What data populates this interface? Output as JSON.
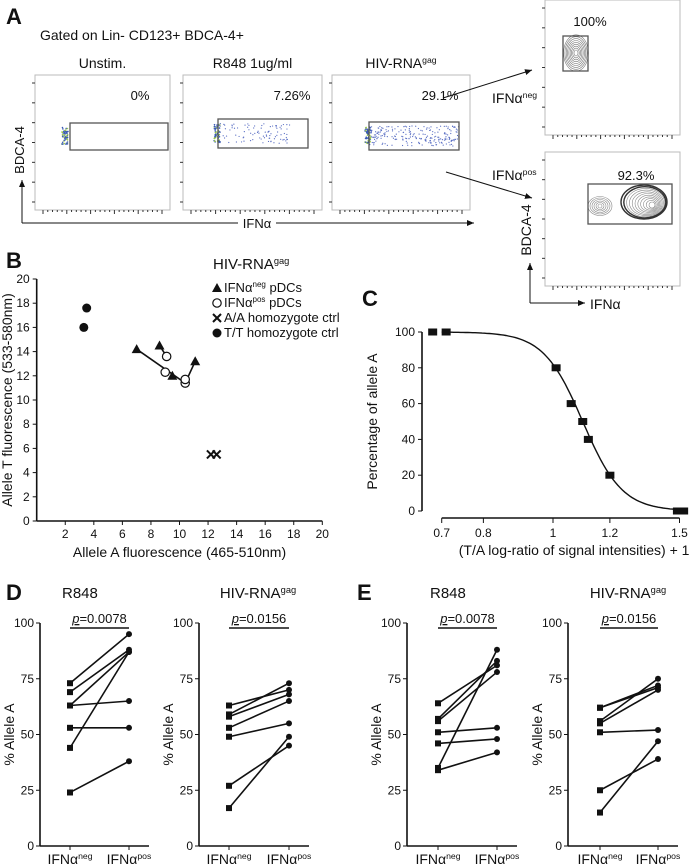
{
  "panel_a": {
    "letter": "A",
    "title": "Gated on Lin- CD123+ BDCA-4+",
    "plots": [
      {
        "title": "Unstim.",
        "title_sup": "",
        "percent": "0%"
      },
      {
        "title": "R848 1ug/ml",
        "title_sup": "",
        "percent": "7.26%"
      },
      {
        "title": "HIV-RNA",
        "title_sup": "gag",
        "percent": "29.1%"
      }
    ],
    "y_label": "BDCA-4",
    "x_label": "IFNα",
    "sorted": [
      {
        "label": "IFNα",
        "label_sup": "neg",
        "percent": "100%"
      },
      {
        "label": "IFNα",
        "label_sup": "pos",
        "percent": "92.3%"
      }
    ],
    "sorted_y_label": "BDCA-4",
    "sorted_x_label": "IFNα"
  },
  "chart_data": [
    {
      "panel": "B",
      "type": "scatter",
      "title": "HIV-RNA",
      "title_sup": "gag",
      "xlabel": "Allele A fluorescence (465-510nm)",
      "ylabel": "Allele T fluorescence (533-580nm)",
      "xlim": [
        0,
        20
      ],
      "ylim": [
        0,
        20
      ],
      "xticks": [
        2,
        4,
        6,
        8,
        10,
        12,
        14,
        16,
        18,
        20
      ],
      "yticks": [
        0,
        2,
        4,
        6,
        8,
        10,
        12,
        14,
        16,
        18,
        20
      ],
      "legend_position": "top-right",
      "series": [
        {
          "name": "IFNα",
          "name_sup": "neg",
          "name_suffix": " pDCs",
          "marker": "filled-triangle",
          "points": [
            [
              7.0,
              14.2
            ],
            [
              8.6,
              14.5
            ],
            [
              9.5,
              12.0
            ],
            [
              11.1,
              13.2
            ]
          ]
        },
        {
          "name": "IFNα",
          "name_sup": "pos",
          "name_suffix": " pDCs",
          "marker": "open-circle",
          "points": [
            [
              9.0,
              12.3
            ],
            [
              9.1,
              13.6
            ],
            [
              10.4,
              11.4
            ],
            [
              10.4,
              11.7
            ]
          ]
        },
        {
          "name": "A/A homozygote ctrl",
          "name_sup": "",
          "name_suffix": "",
          "marker": "cross",
          "points": [
            [
              12.2,
              5.5
            ],
            [
              12.6,
              5.5
            ]
          ]
        },
        {
          "name": "T/T homozygote ctrl",
          "name_sup": "",
          "name_suffix": "",
          "marker": "filled-circle",
          "points": [
            [
              3.3,
              16.0
            ],
            [
              3.5,
              17.6
            ]
          ]
        }
      ],
      "connectors": [
        [
          [
            7.0,
            14.2
          ],
          [
            10.4,
            11.4
          ]
        ],
        [
          [
            8.6,
            14.5
          ],
          [
            9.1,
            13.6
          ]
        ],
        [
          [
            11.1,
            13.2
          ],
          [
            10.4,
            11.4
          ]
        ]
      ]
    },
    {
      "panel": "C",
      "type": "scatter",
      "xlabel": "(T/A log-ratio of signal intensities) + 1",
      "ylabel": "Percentage of allele A",
      "x_scale": "log",
      "xlim": [
        0.7,
        1.5
      ],
      "ylim": [
        0,
        100
      ],
      "xticks": [
        0.7,
        0.8,
        1,
        1.2,
        1.5
      ],
      "xtick_labels": [
        "0.7",
        "0.8",
        "1",
        "1.2",
        "1.5"
      ],
      "yticks": [
        0,
        20,
        40,
        60,
        80,
        100
      ],
      "fit": "sigmoid",
      "x": [
        0.68,
        0.71,
        1.01,
        1.06,
        1.1,
        1.12,
        1.2,
        1.49,
        1.52
      ],
      "y": [
        100,
        100,
        80,
        60,
        50,
        40,
        20,
        0,
        0
      ]
    },
    {
      "panel": "D",
      "subpanel": "R848",
      "type": "paired-line",
      "title": "R848",
      "title_sup": "",
      "ylabel": "% Allele A",
      "ylim": [
        0,
        100
      ],
      "yticks": [
        0,
        25,
        50,
        75,
        100
      ],
      "categories": [
        {
          "label": "IFNα",
          "sup": "neg"
        },
        {
          "label": "IFNα",
          "sup": "pos"
        }
      ],
      "pvalue_prefix": "p",
      "pvalue": "=0.0078",
      "pairs": [
        [
          73,
          95
        ],
        [
          69,
          88
        ],
        [
          63,
          87
        ],
        [
          63,
          65
        ],
        [
          53,
          53
        ],
        [
          44,
          87
        ],
        [
          24,
          38
        ]
      ]
    },
    {
      "panel": "D",
      "subpanel": "HIV-RNA gag",
      "type": "paired-line",
      "title": "HIV-RNA",
      "title_sup": "gag",
      "ylabel": "% Allele A",
      "ylim": [
        0,
        100
      ],
      "yticks": [
        0,
        25,
        50,
        75,
        100
      ],
      "categories": [
        {
          "label": "IFNα",
          "sup": "neg"
        },
        {
          "label": "IFNα",
          "sup": "pos"
        }
      ],
      "pvalue_prefix": "p",
      "pvalue": "=0.0156",
      "pairs": [
        [
          63,
          70
        ],
        [
          59,
          73
        ],
        [
          58,
          68
        ],
        [
          53,
          65
        ],
        [
          49,
          55
        ],
        [
          27,
          45
        ],
        [
          17,
          49
        ]
      ]
    },
    {
      "panel": "E",
      "subpanel": "R848",
      "type": "paired-line",
      "title": "R848",
      "title_sup": "",
      "ylabel": "% Allele A",
      "ylim": [
        0,
        100
      ],
      "yticks": [
        0,
        25,
        50,
        75,
        100
      ],
      "categories": [
        {
          "label": "IFNα",
          "sup": "neg"
        },
        {
          "label": "IFNα",
          "sup": "pos"
        }
      ],
      "pvalue_prefix": "p",
      "pvalue": "=0.0078",
      "pairs": [
        [
          64,
          81
        ],
        [
          57,
          83
        ],
        [
          56,
          78
        ],
        [
          51,
          53
        ],
        [
          46,
          48
        ],
        [
          35,
          88
        ],
        [
          34,
          42
        ]
      ]
    },
    {
      "panel": "E",
      "subpanel": "HIV-RNA gag",
      "type": "paired-line",
      "title": "HIV-RNA",
      "title_sup": "gag",
      "ylabel": "% Allele A",
      "ylim": [
        0,
        100
      ],
      "yticks": [
        0,
        25,
        50,
        75,
        100
      ],
      "categories": [
        {
          "label": "IFNα",
          "sup": "neg"
        },
        {
          "label": "IFNα",
          "sup": "pos"
        }
      ],
      "pvalue_prefix": "p",
      "pvalue": "=0.0156",
      "pairs": [
        [
          62,
          72
        ],
        [
          62,
          71
        ],
        [
          56,
          75
        ],
        [
          55,
          70
        ],
        [
          51,
          52
        ],
        [
          25,
          39
        ],
        [
          15,
          47
        ]
      ]
    }
  ],
  "panel_labels": {
    "b": "B",
    "c": "C",
    "d": "D",
    "e": "E"
  }
}
